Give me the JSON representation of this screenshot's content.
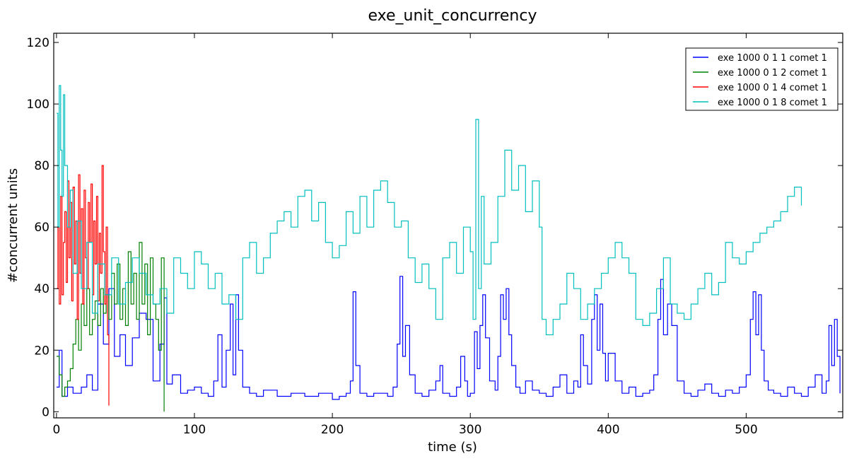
{
  "chart_data": {
    "type": "line",
    "title": "exe_unit_concurrency",
    "xlabel": "time (s)",
    "ylabel": "#concurrent units",
    "xlim": [
      -2,
      570
    ],
    "ylim": [
      -2,
      123
    ],
    "xticks": [
      0,
      100,
      200,
      300,
      400,
      500
    ],
    "yticks": [
      0,
      20,
      40,
      60,
      80,
      100,
      120
    ],
    "grid": false,
    "legend_position": "top-right",
    "series": [
      {
        "name": "exe 1000 0 1 1 comet 1",
        "color": "#0000ff",
        "x": [
          0,
          2,
          4,
          8,
          12,
          18,
          22,
          26,
          30,
          34,
          38,
          42,
          46,
          50,
          55,
          60,
          65,
          70,
          75,
          78,
          80,
          84,
          90,
          95,
          100,
          105,
          110,
          114,
          117,
          120,
          123,
          126,
          128,
          130,
          132,
          135,
          140,
          145,
          150,
          160,
          170,
          180,
          190,
          200,
          205,
          210,
          213,
          215,
          217,
          220,
          225,
          230,
          240,
          244,
          247,
          249,
          251,
          253,
          256,
          260,
          265,
          270,
          275,
          278,
          280,
          285,
          290,
          293,
          296,
          298,
          300,
          303,
          305,
          307,
          309,
          311,
          314,
          318,
          320,
          322,
          324,
          326,
          328,
          330,
          333,
          336,
          340,
          345,
          350,
          355,
          360,
          365,
          370,
          375,
          378,
          380,
          382,
          385,
          388,
          390,
          392,
          394,
          396,
          398,
          400,
          405,
          410,
          415,
          420,
          425,
          430,
          433,
          436,
          438,
          440,
          443,
          446,
          450,
          455,
          460,
          465,
          470,
          475,
          480,
          485,
          490,
          495,
          500,
          503,
          505,
          507,
          509,
          511,
          513,
          516,
          520,
          525,
          530,
          535,
          540,
          545,
          550,
          555,
          558,
          560,
          562,
          564,
          566,
          568
        ],
        "y": [
          8,
          20,
          5,
          8,
          6,
          8,
          12,
          7,
          35,
          22,
          40,
          18,
          25,
          15,
          24,
          32,
          30,
          10,
          22,
          37,
          9,
          12,
          6,
          7,
          8,
          6,
          5,
          10,
          25,
          8,
          20,
          35,
          12,
          38,
          20,
          8,
          6,
          5,
          7,
          5,
          6,
          5,
          6,
          4,
          5,
          6,
          10,
          39,
          15,
          6,
          5,
          6,
          5,
          8,
          22,
          44,
          18,
          28,
          12,
          6,
          5,
          7,
          10,
          15,
          6,
          5,
          8,
          18,
          10,
          5,
          6,
          26,
          14,
          28,
          38,
          24,
          10,
          7,
          18,
          38,
          30,
          40,
          25,
          15,
          8,
          6,
          10,
          7,
          6,
          5,
          8,
          12,
          6,
          10,
          8,
          25,
          15,
          9,
          30,
          38,
          20,
          35,
          19,
          10,
          19,
          10,
          6,
          8,
          5,
          6,
          7,
          12,
          30,
          43,
          25,
          35,
          28,
          10,
          6,
          5,
          7,
          9,
          6,
          5,
          7,
          6,
          8,
          12,
          30,
          39,
          25,
          38,
          20,
          10,
          7,
          6,
          5,
          8,
          6,
          5,
          8,
          12,
          6,
          10,
          28,
          15,
          30,
          18,
          6
        ]
      },
      {
        "name": "exe 1000 0 1 2 comet 1",
        "color": "#008000",
        "x": [
          0,
          2,
          4,
          6,
          8,
          10,
          12,
          14,
          16,
          18,
          20,
          22,
          24,
          26,
          28,
          30,
          32,
          34,
          36,
          38,
          40,
          42,
          44,
          46,
          48,
          50,
          52,
          54,
          56,
          58,
          60,
          62,
          64,
          66,
          68,
          70,
          72,
          74,
          76,
          78
        ],
        "y": [
          18,
          12,
          5,
          8,
          10,
          14,
          22,
          30,
          20,
          35,
          28,
          40,
          25,
          30,
          36,
          28,
          40,
          32,
          38,
          30,
          45,
          35,
          48,
          30,
          40,
          28,
          52,
          35,
          45,
          30,
          55,
          35,
          48,
          25,
          50,
          35,
          30,
          20,
          50,
          0
        ]
      },
      {
        "name": "exe 1000 0 1 4 comet 1",
        "color": "#ff0000",
        "x": [
          0,
          1,
          2,
          3,
          4,
          5,
          6,
          7,
          8,
          9,
          10,
          11,
          12,
          13,
          14,
          15,
          16,
          17,
          18,
          19,
          20,
          21,
          22,
          23,
          24,
          25,
          26,
          27,
          28,
          29,
          30,
          31,
          32,
          33,
          34,
          35,
          36,
          37,
          38
        ],
        "y": [
          40,
          60,
          35,
          70,
          38,
          55,
          65,
          42,
          75,
          50,
          68,
          36,
          73,
          48,
          62,
          30,
          77,
          45,
          66,
          35,
          72,
          50,
          40,
          68,
          55,
          74,
          38,
          62,
          48,
          70,
          36,
          58,
          45,
          80,
          52,
          35,
          60,
          25,
          2
        ]
      },
      {
        "name": "exe 1000 0 1 8 comet 1",
        "color": "#00bfbf",
        "x": [
          0,
          1,
          2,
          3,
          4,
          5,
          6,
          8,
          10,
          12,
          15,
          18,
          22,
          26,
          30,
          35,
          40,
          45,
          50,
          55,
          60,
          65,
          70,
          75,
          80,
          85,
          90,
          95,
          100,
          105,
          110,
          115,
          120,
          125,
          130,
          135,
          140,
          145,
          150,
          155,
          160,
          165,
          170,
          175,
          180,
          185,
          190,
          195,
          200,
          205,
          210,
          215,
          220,
          225,
          230,
          235,
          240,
          245,
          250,
          255,
          260,
          265,
          270,
          275,
          280,
          285,
          290,
          295,
          300,
          302,
          304,
          306,
          308,
          310,
          315,
          320,
          325,
          330,
          335,
          340,
          345,
          350,
          352,
          355,
          360,
          365,
          370,
          375,
          380,
          385,
          390,
          395,
          400,
          405,
          410,
          415,
          420,
          425,
          430,
          435,
          440,
          445,
          450,
          455,
          460,
          465,
          470,
          475,
          480,
          485,
          490,
          495,
          500,
          505,
          510,
          515,
          520,
          525,
          530,
          535,
          540
        ],
        "y": [
          97,
          60,
          106,
          85,
          70,
          103,
          80,
          60,
          72,
          45,
          62,
          40,
          55,
          32,
          48,
          38,
          50,
          35,
          42,
          50,
          45,
          38,
          35,
          40,
          32,
          50,
          45,
          40,
          52,
          48,
          40,
          45,
          35,
          38,
          30,
          50,
          55,
          45,
          50,
          58,
          62,
          65,
          60,
          70,
          72,
          62,
          68,
          55,
          50,
          54,
          65,
          58,
          70,
          60,
          72,
          75,
          68,
          60,
          62,
          50,
          42,
          48,
          40,
          30,
          50,
          55,
          45,
          60,
          52,
          30,
          95,
          40,
          70,
          48,
          55,
          70,
          85,
          72,
          80,
          65,
          75,
          60,
          30,
          25,
          30,
          35,
          45,
          40,
          30,
          35,
          40,
          45,
          50,
          55,
          50,
          45,
          30,
          28,
          32,
          40,
          50,
          35,
          32,
          30,
          35,
          40,
          45,
          38,
          42,
          55,
          50,
          48,
          52,
          55,
          58,
          60,
          62,
          65,
          70,
          73,
          67
        ]
      }
    ]
  }
}
